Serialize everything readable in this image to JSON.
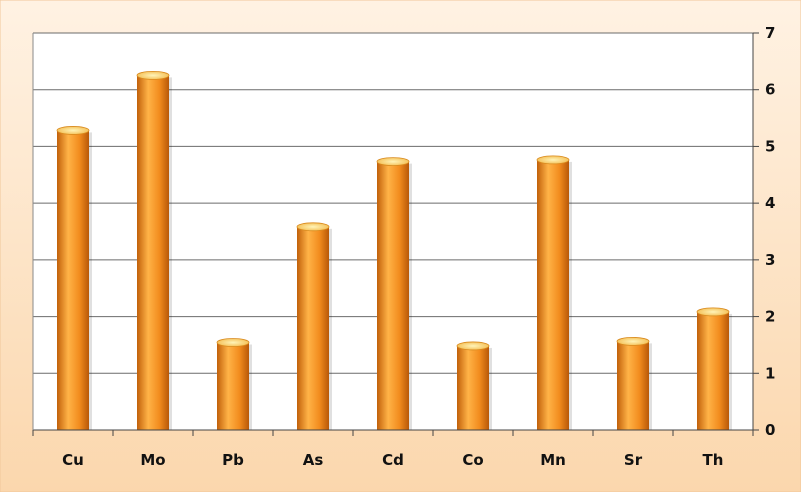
{
  "chart_data": {
    "type": "bar",
    "categories": [
      "Cu",
      "Mo",
      "Pb",
      "As",
      "Cd",
      "Co",
      "Mn",
      "Sr",
      "Th"
    ],
    "values": [
      5.3,
      6.27,
      1.56,
      3.6,
      4.75,
      1.5,
      4.78,
      1.58,
      2.1
    ],
    "title": "",
    "xlabel": "",
    "ylabel": "",
    "ylim": [
      0,
      7
    ],
    "yticks": [
      "0",
      "1",
      "2",
      "3",
      "4",
      "5",
      "6",
      "7"
    ],
    "y_axis_side": "right",
    "grid": true,
    "legend": "none"
  },
  "colors": {
    "background": "#fde3c6",
    "plot_area": "#ffffff",
    "bar_light": "#ffb347",
    "bar_mid": "#f28c1e",
    "bar_dark": "#c1600a",
    "bar_top": "#ffe08a",
    "gridline": "#6b6b6b"
  }
}
